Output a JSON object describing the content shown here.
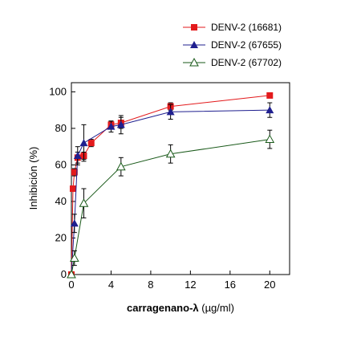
{
  "chart_data": {
    "type": "line",
    "title": "",
    "xlabel_bold": "carragenano-λ",
    "xlabel_unit": " (µg/ml)",
    "ylabel": "Inhibición (%)",
    "xlim": [
      0,
      22
    ],
    "ylim": [
      0,
      105
    ],
    "xticks": [
      0,
      4,
      8,
      12,
      16,
      20
    ],
    "yticks": [
      0,
      20,
      40,
      60,
      80,
      100
    ],
    "grid": false,
    "legend_position": "top-right",
    "series": [
      {
        "name": "DENV-2 (16681)",
        "marker": "square",
        "color": "#e31a1c",
        "x": [
          0,
          0.16,
          0.31,
          0.63,
          1.25,
          2.0,
          4.0,
          5.0,
          10.0,
          20.0
        ],
        "y": [
          0,
          47,
          56,
          64,
          65,
          72,
          82,
          83,
          92,
          98
        ],
        "err": [
          0,
          0,
          2,
          3,
          2,
          2,
          2,
          3,
          2,
          1
        ]
      },
      {
        "name": "DENV-2 (67655)",
        "marker": "triangle-filled",
        "color": "#1f1f8f",
        "x": [
          0,
          0.31,
          0.63,
          1.25,
          4.0,
          5.0,
          10.0,
          20.0
        ],
        "y": [
          0,
          28,
          65,
          72,
          81,
          82,
          89,
          90
        ],
        "err": [
          0,
          5,
          5,
          10,
          3,
          5,
          4,
          4
        ]
      },
      {
        "name": "DENV-2 (67702)",
        "marker": "triangle-open",
        "color": "#1a5a1a",
        "x": [
          0,
          0.31,
          1.25,
          5.0,
          10.0,
          20.0
        ],
        "y": [
          0,
          9,
          39,
          59,
          66,
          74
        ],
        "err": [
          0,
          4,
          8,
          5,
          5,
          5
        ]
      }
    ]
  }
}
